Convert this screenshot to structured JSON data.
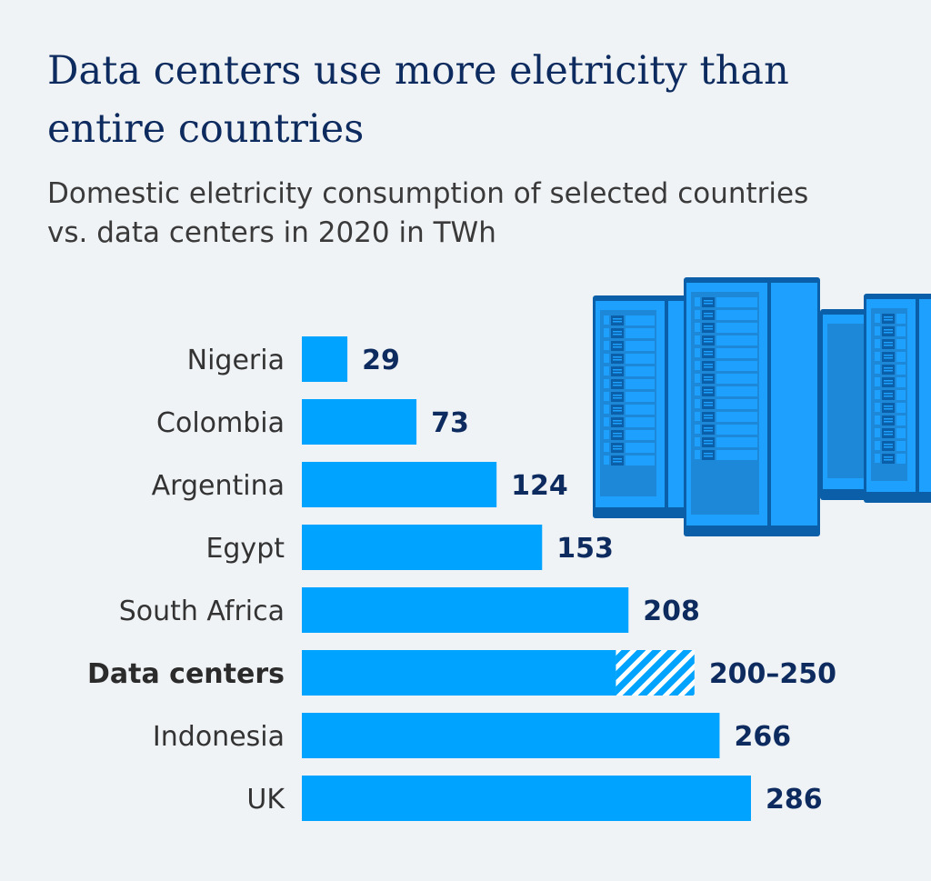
{
  "title": "Data centers use more eletricity than entire countries",
  "subtitle": "Domestic eletricity consumption of selected countries vs. data centers in 2020 in TWh",
  "illustration": "server-racks-icon",
  "colors": {
    "bar": "#00a3ff",
    "value_text": "#0d2b5e",
    "title": "#0d2b5e",
    "background": "#f0f3f6"
  },
  "chart_data": {
    "type": "bar",
    "orientation": "horizontal",
    "title": "Data centers use more eletricity than entire countries",
    "subtitle": "Domestic eletricity consumption of selected countries vs. data centers in 2020 in TWh",
    "xlabel": "",
    "ylabel": "",
    "grid": false,
    "categories": [
      "Nigeria",
      "Colombia",
      "Argentina",
      "Egypt",
      "South Africa",
      "Data centers",
      "Indonesia",
      "UK"
    ],
    "values": [
      29,
      73,
      124,
      153,
      208,
      200,
      266,
      286
    ],
    "range_high": [
      null,
      null,
      null,
      null,
      null,
      250,
      null,
      null
    ],
    "labels": [
      "29",
      "73",
      "124",
      "153",
      "208",
      "200–250",
      "266",
      "286"
    ],
    "highlight": "Data centers",
    "xlim": [
      0,
      286
    ]
  }
}
